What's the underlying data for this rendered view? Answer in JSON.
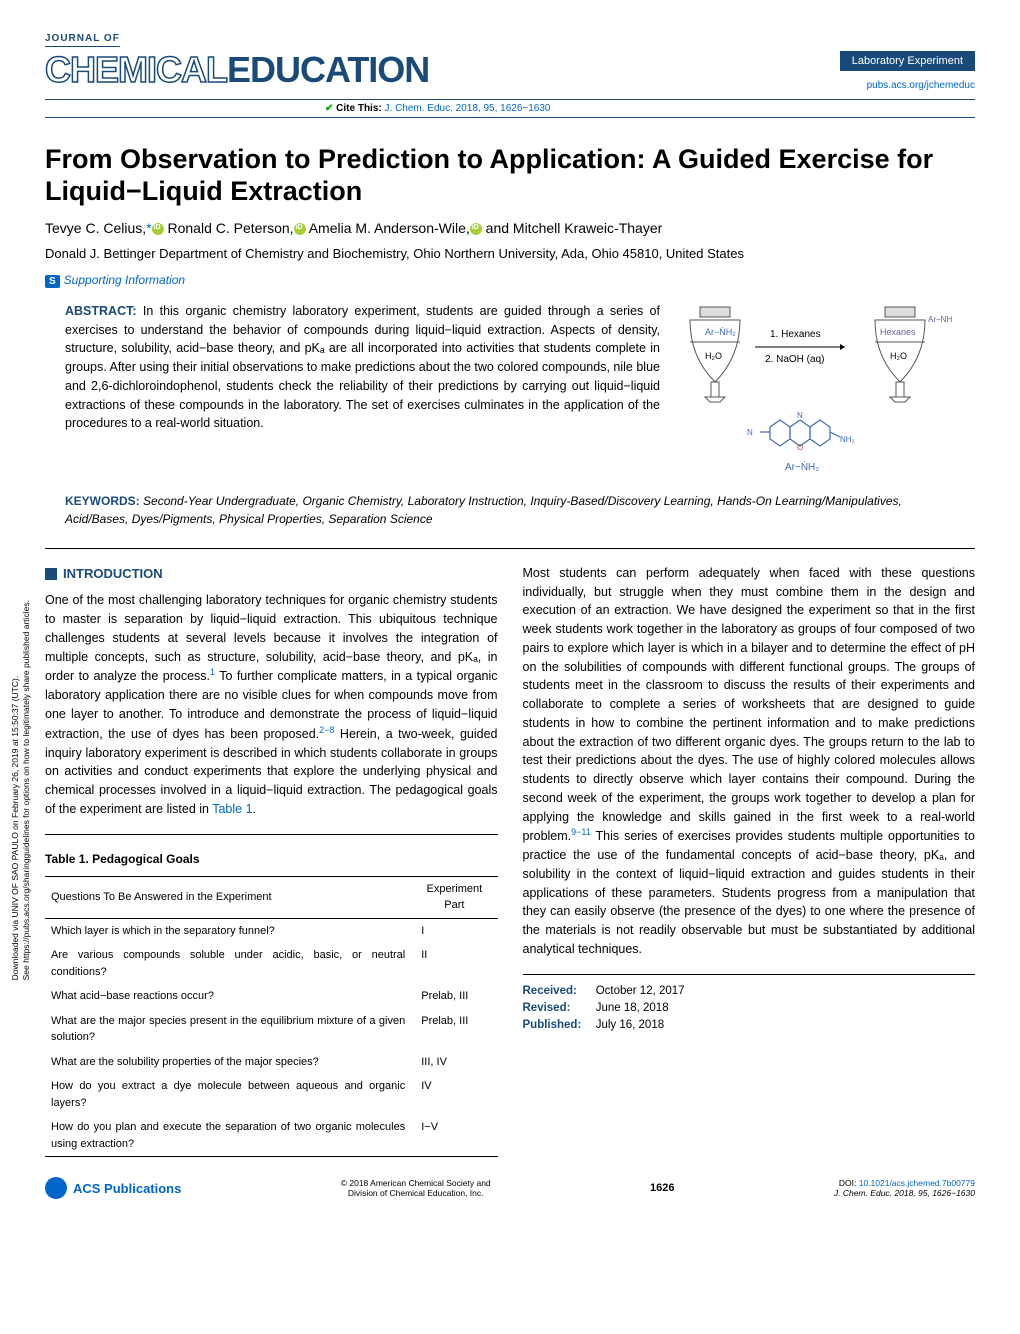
{
  "masthead": {
    "journal_of": "JOURNAL OF",
    "chemical": "CHEMICAL",
    "education": "EDUCATION",
    "lab_badge": "Laboratory Experiment",
    "cite_this": "Cite This:",
    "cite_ref": "J. Chem. Educ. 2018, 95, 1626−1630",
    "pubs_link": "pubs.acs.org/jchemeduc"
  },
  "title": "From Observation to Prediction to Application: A Guided Exercise for Liquid−Liquid Extraction",
  "authors": {
    "a1": "Tevye C. Celius,",
    "a1_mark": "*",
    "a2": "Ronald C. Peterson,",
    "a3": "Amelia M. Anderson-Wile,",
    "a4": "and Mitchell Kraweic-Thayer"
  },
  "affiliation": "Donald J. Bettinger Department of Chemistry and Biochemistry, Ohio Northern University, Ada, Ohio 45810, United States",
  "supp_info": "Supporting Information",
  "abstract": {
    "label": "ABSTRACT:",
    "text": "In this organic chemistry laboratory experiment, students are guided through a series of exercises to understand the behavior of compounds during liquid−liquid extraction. Aspects of density, structure, solubility, acid−base theory, and pKₐ are all incorporated into activities that students complete in groups. After using their initial observations to make predictions about the two colored compounds, nile blue and 2,6-dichloroindophenol, students check the reliability of their predictions by carrying out liquid−liquid extractions of these compounds in the laboratory. The set of exercises culminates in the application of the procedures to a real-world situation."
  },
  "diagram": {
    "left_top": "Ar−ṄH₂",
    "left_bot": "H₂O",
    "right_top_label": "Ar−NH",
    "right_top": "Hexanes",
    "right_bot": "H₂O",
    "step1": "1. Hexanes",
    "step2": "2. NaOH (aq)",
    "mol_label": "Ar−ṄH₂",
    "colors": {
      "blue": "#4169b8",
      "purple": "#6b5b9e",
      "red": "#b84141",
      "line": "#555"
    }
  },
  "keywords": {
    "label": "KEYWORDS:",
    "text": "Second-Year Undergraduate, Organic Chemistry, Laboratory Instruction, Inquiry-Based/Discovery Learning, Hands-On Learning/Manipulatives, Acid/Bases, Dyes/Pigments, Physical Properties, Separation Science"
  },
  "intro": {
    "header": "INTRODUCTION",
    "p1a": "One of the most challenging laboratory techniques for organic chemistry students to master is separation by liquid−liquid extraction. This ubiquitous technique challenges students at several levels because it involves the integration of multiple concepts, such as structure, solubility, acid−base theory, and pKₐ, in order to analyze the process.",
    "ref1": "1",
    "p1b": " To further complicate matters, in a typical organic laboratory application there are no visible clues for when compounds move from one layer to another. To introduce and demonstrate the process of liquid−liquid extraction, the use of dyes has been proposed.",
    "ref2": "2−8",
    "p1c": " Herein, a two-week, guided inquiry laboratory experiment is described in which students collaborate in groups on activities and conduct experiments that explore the underlying physical and chemical processes involved in a liquid−liquid extraction. The pedagogical goals of the experiment are listed in ",
    "tableref": "Table 1",
    "p1d": "."
  },
  "table1": {
    "title": "Table 1. Pedagogical Goals",
    "h1": "Questions To Be Answered in the Experiment",
    "h2": "Experiment Part",
    "rows": [
      {
        "q": "Which layer is which in the separatory funnel?",
        "p": "I"
      },
      {
        "q": "Are various compounds soluble under acidic, basic, or neutral conditions?",
        "p": "II"
      },
      {
        "q": "What acid−base reactions occur?",
        "p": "Prelab, III"
      },
      {
        "q": "What are the major species present in the equilibrium mixture of a given solution?",
        "p": "Prelab, III"
      },
      {
        "q": "What are the solubility properties of the major species?",
        "p": "III, IV"
      },
      {
        "q": "How do you extract a dye molecule between aqueous and organic layers?",
        "p": "IV"
      },
      {
        "q": "How do you plan and execute the separation of two organic molecules using extraction?",
        "p": "I−V"
      }
    ]
  },
  "col2": {
    "p1a": "Most students can perform adequately when faced with these questions individually, but struggle when they must combine them in the design and execution of an extraction. We have designed the experiment so that in the first week students work together in the laboratory as groups of four composed of two pairs to explore which layer is which in a bilayer and to determine the effect of pH on the solubilities of compounds with different functional groups. The groups of students meet in the classroom to discuss the results of their experiments and collaborate to complete a series of worksheets that are designed to guide students in how to combine the pertinent information and to make predictions about the extraction of two different organic dyes. The groups return to the lab to test their predictions about the dyes. The use of highly colored molecules allows students to directly observe which layer contains their compound. During the second week of the experiment, the groups work together to develop a plan for applying the knowledge and skills gained in the first week to a real-world problem.",
    "ref1": "9−11",
    "p1b": " This series of exercises provides students multiple opportunities to practice the use of the fundamental concepts of acid−base theory, pKₐ, and solubility in the context of liquid−liquid extraction and guides students in their applications of these parameters. Students progress from a manipulation that they can easily observe (the presence of the dyes) to one where the presence of the materials is not readily observable but must be substantiated by additional analytical techniques."
  },
  "dates": {
    "received_lbl": "Received:",
    "received": "October 12, 2017",
    "revised_lbl": "Revised:",
    "revised": "June 18, 2018",
    "published_lbl": "Published:",
    "published": "July 16, 2018"
  },
  "footer": {
    "acs": "ACS Publications",
    "copyright": "© 2018 American Chemical Society and\nDivision of Chemical Education, Inc.",
    "page": "1626",
    "doi_lbl": "DOI:",
    "doi": "10.1021/acs.jchemed.7b00779",
    "cite": "J. Chem. Educ. 2018, 95, 1626−1630"
  },
  "sidebar": {
    "line1": "Downloaded via UNIV OF SAO PAULO on February 26, 2019 at 15:50:37 (UTC).",
    "line2": "See https://pubs.acs.org/sharingguidelines for options on how to legitimately share published articles."
  }
}
